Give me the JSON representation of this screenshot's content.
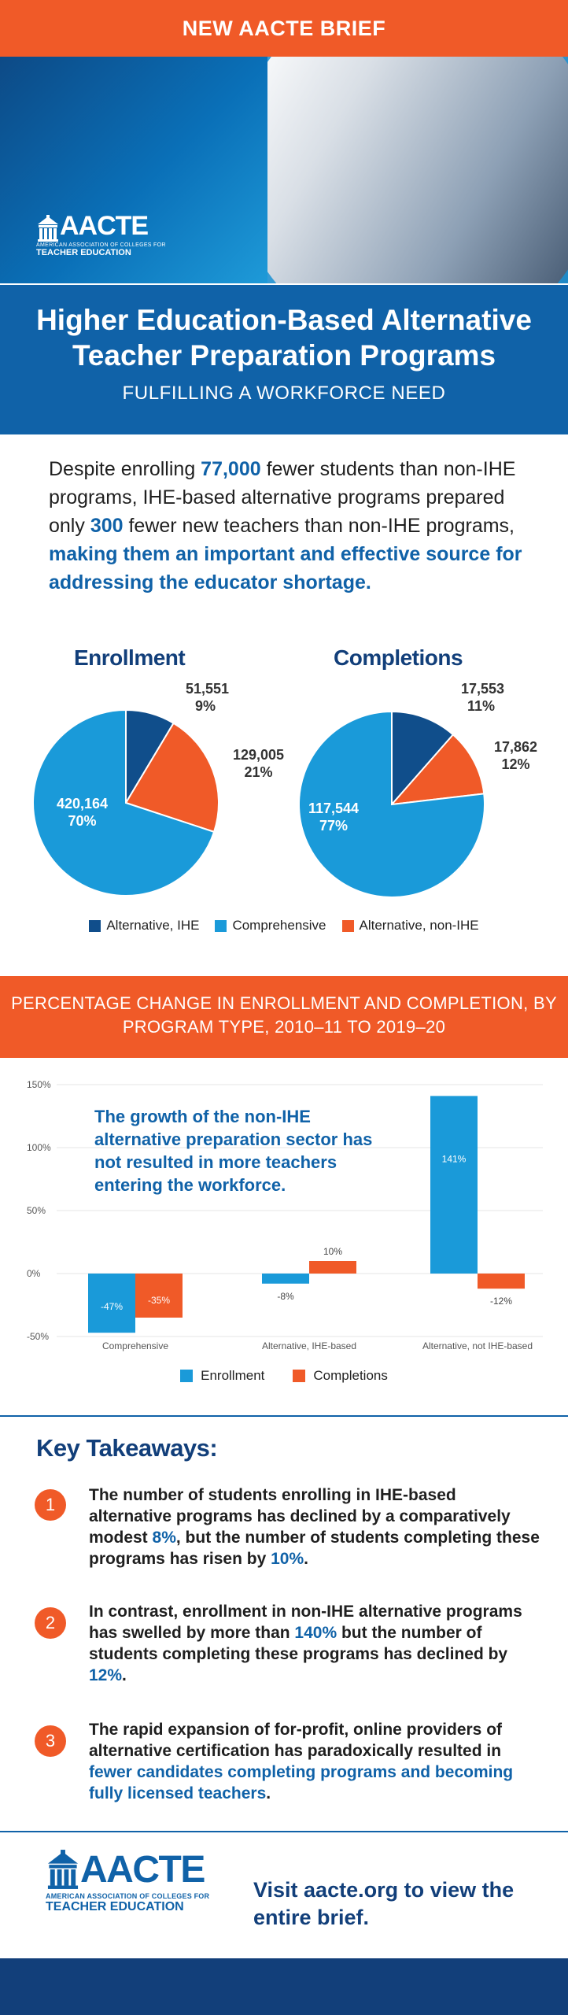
{
  "header": {
    "banner": "NEW AACTE BRIEF"
  },
  "logo": {
    "word": "AACTE",
    "sub1": "AMERICAN ASSOCIATION OF COLLEGES FOR",
    "sub2": "TEACHER EDUCATION"
  },
  "title": {
    "line1": "Higher Education-Based Alternative",
    "line2": "Teacher Preparation Programs",
    "subtitle": "FULFILLING A WORKFORCE NEED"
  },
  "intro": {
    "p1": "Despite enrolling ",
    "n1": "77,000",
    "p2": " fewer students than non-IHE programs, IHE-based alternative programs prepared only ",
    "n2": "300",
    "p3": " fewer new teachers than non-IHE programs, ",
    "emphasis": "making them an important and effective source for addressing the educator shortage."
  },
  "colors": {
    "alt_ihe": "#104e8b",
    "comprehensive": "#1a9ad9",
    "alt_non_ihe": "#f05a28",
    "accent_blue": "#1062a8",
    "orange": "#f05a28"
  },
  "chart_data": [
    {
      "type": "pie",
      "title": "Enrollment",
      "slices": [
        {
          "name": "Alternative, IHE",
          "value": 51551,
          "label_value": "51,551",
          "label_pct": "9%"
        },
        {
          "name": "Alternative, non-IHE",
          "value": 129005,
          "label_value": "129,005",
          "label_pct": "21%"
        },
        {
          "name": "Comprehensive",
          "value": 420164,
          "label_value": "420,164",
          "label_pct": "70%"
        }
      ]
    },
    {
      "type": "pie",
      "title": "Completions",
      "slices": [
        {
          "name": "Alternative, IHE",
          "value": 17553,
          "label_value": "17,553",
          "label_pct": "11%"
        },
        {
          "name": "Alternative, non-IHE",
          "value": 17862,
          "label_value": "17,862",
          "label_pct": "12%"
        },
        {
          "name": "Comprehensive",
          "value": 117544,
          "label_value": "117,544",
          "label_pct": "77%"
        }
      ]
    },
    {
      "type": "bar",
      "title": "PERCENTAGE CHANGE IN ENROLLMENT AND COMPLETION, BY PROGRAM TYPE, 2010–11 TO 2019–20",
      "categories": [
        "Comprehensive",
        "Alternative, IHE-based",
        "Alternative, not IHE-based"
      ],
      "series": [
        {
          "name": "Enrollment",
          "values": [
            -47,
            -8,
            141
          ],
          "labels": [
            "-47%",
            "-8%",
            "141%"
          ]
        },
        {
          "name": "Completions",
          "values": [
            -35,
            10,
            -12
          ],
          "labels": [
            "-35%",
            "10%",
            "-12%"
          ]
        }
      ],
      "yticks": [
        "150%",
        "100%",
        "50%",
        "0%",
        "-50%"
      ],
      "ylim": [
        -50,
        150
      ],
      "annotation": "The growth of the non-IHE alternative preparation sector has not resulted in more teachers entering the workforce."
    }
  ],
  "pie_legend": [
    "Alternative, IHE",
    "Comprehensive",
    "Alternative, non-IHE"
  ],
  "bar_legend": [
    "Enrollment",
    "Completions"
  ],
  "takeaways": {
    "title": "Key Takeaways:",
    "items": [
      {
        "num": "1",
        "a": "The number of students enrolling in IHE-based alternative programs has declined by a comparatively modest ",
        "b": "8%",
        "c": ", but the number of students completing these programs has risen by ",
        "d": "10%",
        "e": "."
      },
      {
        "num": "2",
        "a": "In contrast, enrollment in non-IHE alternative programs has swelled by more than ",
        "b": "140%",
        "c": " but the number of students completing these programs has declined by ",
        "d": "12%",
        "e": "."
      },
      {
        "num": "3",
        "a": "The rapid expansion of for-profit, online providers of alternative certification has paradoxically resulted in ",
        "b": "fewer candidates completing programs and becoming fully licensed teachers",
        "c": ".",
        "d": "",
        "e": ""
      }
    ]
  },
  "footer": {
    "cta": "Visit aacte.org to view the entire brief."
  }
}
